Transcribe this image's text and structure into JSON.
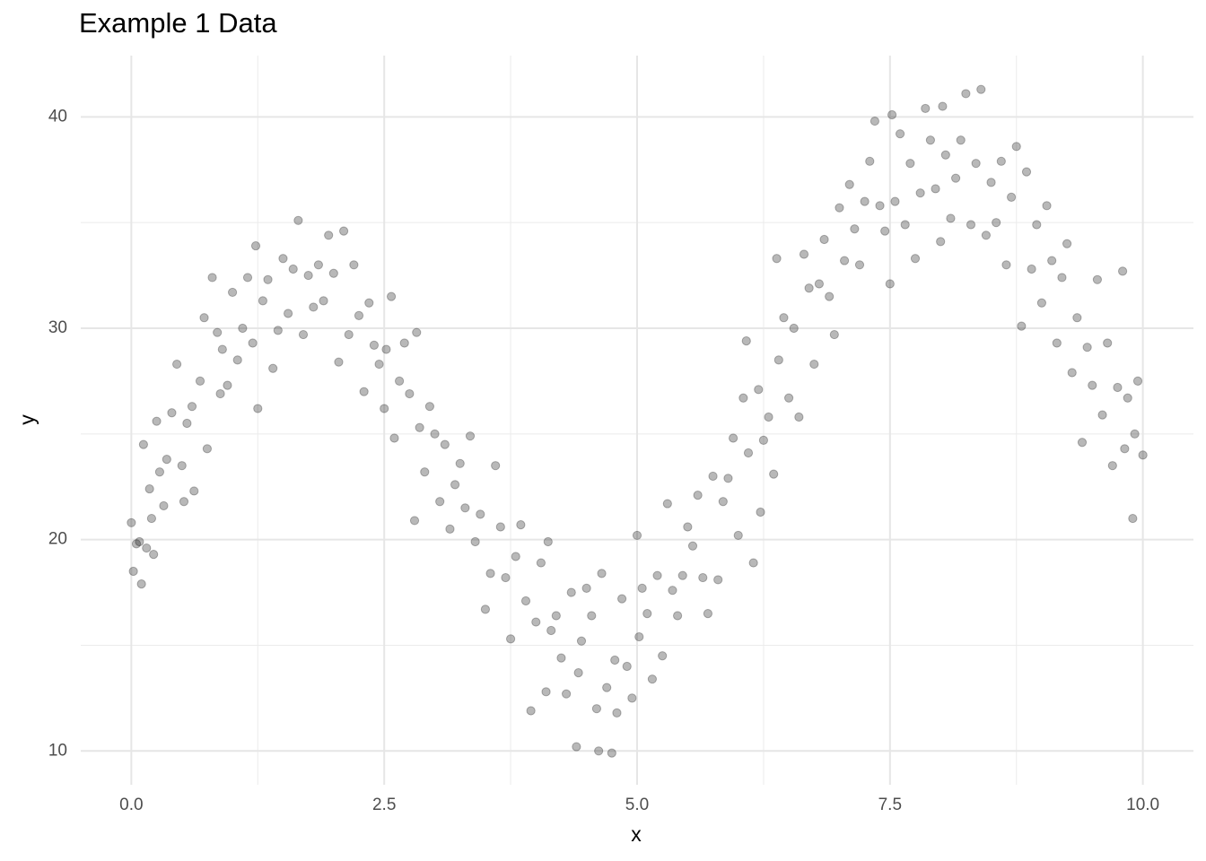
{
  "chart_data": {
    "type": "scatter",
    "title": "Example 1 Data",
    "x_label": "x",
    "y_label": "y",
    "xlim": [
      -0.5,
      10.5
    ],
    "ylim": [
      8.4,
      42.9
    ],
    "xticks": [
      {
        "value": 0,
        "label": "0.0"
      },
      2.5,
      {
        "value": 5,
        "label": "5.0"
      },
      7.5,
      {
        "value": 10,
        "label": "10.0"
      }
    ],
    "yticks": [
      10,
      20,
      30,
      40
    ],
    "grid": true,
    "color": "#000000",
    "x": [
      0.0,
      0.02,
      0.05,
      0.08,
      0.1,
      0.12,
      0.15,
      0.18,
      0.2,
      0.22,
      0.25,
      0.28,
      0.32,
      0.35,
      0.4,
      0.45,
      0.5,
      0.52,
      0.55,
      0.6,
      0.62,
      0.68,
      0.72,
      0.75,
      0.8,
      0.85,
      0.88,
      0.9,
      0.95,
      1.0,
      1.05,
      1.1,
      1.15,
      1.2,
      1.23,
      1.25,
      1.3,
      1.35,
      1.4,
      1.45,
      1.5,
      1.55,
      1.6,
      1.65,
      1.7,
      1.75,
      1.8,
      1.85,
      1.9,
      1.95,
      2.0,
      2.05,
      2.1,
      2.15,
      2.2,
      2.25,
      2.3,
      2.35,
      2.4,
      2.45,
      2.5,
      2.52,
      2.57,
      2.6,
      2.65,
      2.7,
      2.75,
      2.8,
      2.82,
      2.85,
      2.9,
      2.95,
      3.0,
      3.05,
      3.1,
      3.15,
      3.2,
      3.25,
      3.3,
      3.35,
      3.4,
      3.45,
      3.5,
      3.55,
      3.6,
      3.65,
      3.7,
      3.75,
      3.8,
      3.85,
      3.9,
      3.95,
      4.0,
      4.05,
      4.1,
      4.12,
      4.15,
      4.2,
      4.25,
      4.3,
      4.35,
      4.4,
      4.42,
      4.45,
      4.5,
      4.55,
      4.6,
      4.62,
      4.65,
      4.7,
      4.75,
      4.78,
      4.8,
      4.85,
      4.9,
      4.95,
      5.0,
      5.02,
      5.05,
      5.1,
      5.15,
      5.2,
      5.25,
      5.3,
      5.35,
      5.4,
      5.45,
      5.5,
      5.55,
      5.6,
      5.65,
      5.7,
      5.75,
      5.8,
      5.85,
      5.9,
      5.95,
      6.0,
      6.05,
      6.08,
      6.1,
      6.15,
      6.2,
      6.22,
      6.25,
      6.3,
      6.35,
      6.38,
      6.4,
      6.45,
      6.5,
      6.55,
      6.6,
      6.65,
      6.7,
      6.75,
      6.8,
      6.85,
      6.9,
      6.95,
      7.0,
      7.05,
      7.1,
      7.15,
      7.2,
      7.25,
      7.3,
      7.35,
      7.4,
      7.45,
      7.5,
      7.52,
      7.55,
      7.6,
      7.65,
      7.7,
      7.75,
      7.8,
      7.85,
      7.9,
      7.95,
      8.0,
      8.02,
      8.05,
      8.1,
      8.15,
      8.2,
      8.25,
      8.3,
      8.35,
      8.4,
      8.45,
      8.5,
      8.55,
      8.6,
      8.65,
      8.7,
      8.75,
      8.8,
      8.85,
      8.9,
      8.95,
      9.0,
      9.05,
      9.1,
      9.15,
      9.2,
      9.25,
      9.3,
      9.35,
      9.4,
      9.45,
      9.5,
      9.55,
      9.6,
      9.65,
      9.7,
      9.75,
      9.8,
      9.82,
      9.85,
      9.9,
      9.92,
      9.95,
      10.0
    ],
    "values": [
      20.8,
      18.5,
      19.8,
      19.9,
      17.9,
      24.5,
      19.6,
      22.4,
      21.0,
      19.3,
      25.6,
      23.2,
      21.6,
      23.8,
      26.0,
      28.3,
      23.5,
      21.8,
      25.5,
      26.3,
      22.3,
      27.5,
      30.5,
      24.3,
      32.4,
      29.8,
      26.9,
      29.0,
      27.3,
      31.7,
      28.5,
      30.0,
      32.4,
      29.3,
      33.9,
      26.2,
      31.3,
      32.3,
      28.1,
      29.9,
      33.3,
      30.7,
      32.8,
      35.1,
      29.7,
      32.5,
      31.0,
      33.0,
      31.3,
      34.4,
      32.6,
      28.4,
      34.6,
      29.7,
      33.0,
      30.6,
      27.0,
      31.2,
      29.2,
      28.3,
      26.2,
      29.0,
      31.5,
      24.8,
      27.5,
      29.3,
      26.9,
      20.9,
      29.8,
      25.3,
      23.2,
      26.3,
      25.0,
      21.8,
      24.5,
      20.5,
      22.6,
      23.6,
      21.5,
      24.9,
      19.9,
      21.2,
      16.7,
      18.4,
      23.5,
      20.6,
      18.2,
      15.3,
      19.2,
      20.7,
      17.1,
      11.9,
      16.1,
      18.9,
      12.8,
      19.9,
      15.7,
      16.4,
      14.4,
      12.7,
      17.5,
      10.2,
      13.7,
      15.2,
      17.7,
      16.4,
      12.0,
      10.0,
      18.4,
      13.0,
      9.9,
      14.3,
      11.8,
      17.2,
      14.0,
      12.5,
      20.2,
      15.4,
      17.7,
      16.5,
      13.4,
      18.3,
      14.5,
      21.7,
      17.6,
      16.4,
      18.3,
      20.6,
      19.7,
      22.1,
      18.2,
      16.5,
      23.0,
      18.1,
      21.8,
      22.9,
      24.8,
      20.2,
      26.7,
      29.4,
      24.1,
      18.9,
      27.1,
      21.3,
      24.7,
      25.8,
      23.1,
      33.3,
      28.5,
      30.5,
      26.7,
      30.0,
      25.8,
      33.5,
      31.9,
      28.3,
      32.1,
      34.2,
      31.5,
      29.7,
      35.7,
      33.2,
      36.8,
      34.7,
      33.0,
      36.0,
      37.9,
      39.8,
      35.8,
      34.6,
      32.1,
      40.1,
      36.0,
      39.2,
      34.9,
      37.8,
      33.3,
      36.4,
      40.4,
      38.9,
      36.6,
      34.1,
      40.5,
      38.2,
      35.2,
      37.1,
      38.9,
      41.1,
      34.9,
      37.8,
      41.3,
      34.4,
      36.9,
      35.0,
      37.9,
      33.0,
      36.2,
      38.6,
      30.1,
      37.4,
      32.8,
      34.9,
      31.2,
      35.8,
      33.2,
      29.3,
      32.4,
      34.0,
      27.9,
      30.5,
      24.6,
      29.1,
      27.3,
      32.3,
      25.9,
      29.3,
      23.5,
      27.2,
      32.7,
      24.3,
      26.7,
      21.0,
      25.0,
      27.5,
      24.0
    ]
  }
}
